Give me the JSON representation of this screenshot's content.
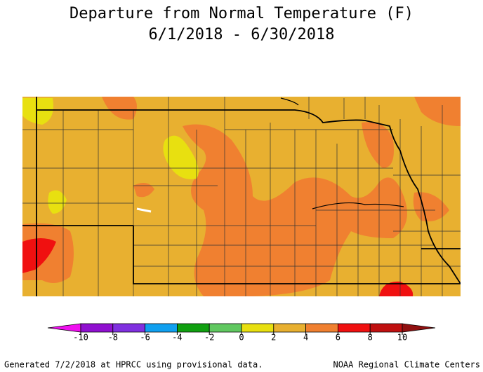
{
  "title": "Departure from Normal Temperature (F)",
  "subtitle": "6/1/2018 - 6/30/2018",
  "legend": {
    "ticks": [
      -10,
      -8,
      -6,
      -4,
      -2,
      0,
      2,
      4,
      6,
      8,
      10
    ],
    "colors": [
      "#f010f0",
      "#9010d0",
      "#8030e0",
      "#10a0f0",
      "#10a010",
      "#60c860",
      "#e8e010",
      "#e8b030",
      "#f08030",
      "#f01010",
      "#c01010",
      "#901010"
    ]
  },
  "footer": {
    "left": "Generated 7/2/2018 at HPRCC using provisional data.",
    "right": "NOAA Regional Climate Centers"
  }
}
